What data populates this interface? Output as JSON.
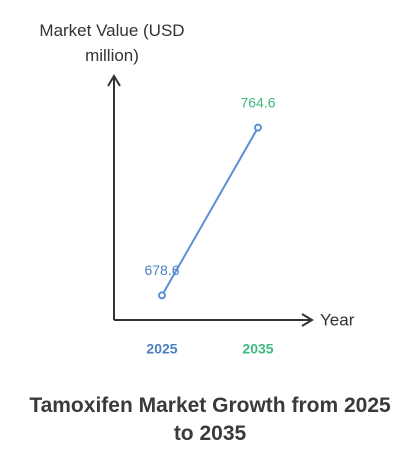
{
  "chart_data": {
    "type": "line",
    "title": "Tamoxifen Market Growth from 2025 to 2035",
    "y_label": "Market Value (USD million)",
    "x_label": "Year",
    "categories": [
      "2025",
      "2035"
    ],
    "category_colors": [
      "#4a7fc1",
      "#3dbb7f"
    ],
    "values": [
      678.6,
      764.6
    ],
    "color": "#5b8fd6",
    "ylim": [
      666,
      790
    ]
  }
}
